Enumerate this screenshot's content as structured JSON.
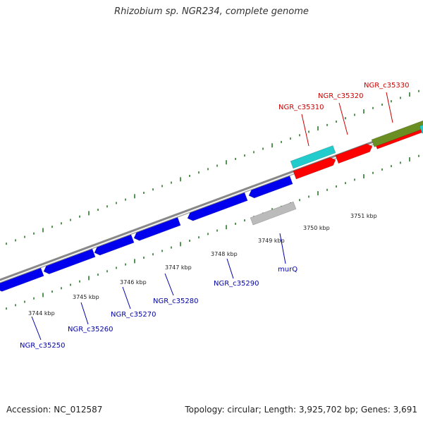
{
  "title": "Rhizobium sp. NGR234, complete genome",
  "footer": {
    "accession": "Accession: NC_012587",
    "summary": "Topology: circular; Length: 3,925,702 bp; Genes: 3,691"
  },
  "colors": {
    "forward_gene": "#ff0000",
    "reverse_gene": "#0000ee",
    "cyan_feature": "#22cccc",
    "olive_feature": "#6b8e23",
    "grey_feature": "#bbbbbb",
    "backbone": "#888888",
    "tick": "#2a7a2a",
    "forward_label": "#cc0000",
    "reverse_label": "#0000aa"
  },
  "scale": {
    "ticks": [
      {
        "kbp": 3744,
        "label": "3744 kbp"
      },
      {
        "kbp": 3745,
        "label": "3745 kbp"
      },
      {
        "kbp": 3746,
        "label": "3746 kbp"
      },
      {
        "kbp": 3747,
        "label": "3747 kbp"
      },
      {
        "kbp": 3748,
        "label": "3748 kbp"
      },
      {
        "kbp": 3749,
        "label": "3749 kbp"
      },
      {
        "kbp": 3750,
        "label": "3750 kbp"
      },
      {
        "kbp": 3751,
        "label": "3751 kbp"
      }
    ]
  },
  "genes": {
    "reverse": [
      {
        "label": "NGR_c35250",
        "labeled": true,
        "color": "#0000ee"
      },
      {
        "label": "NGR_c35260",
        "labeled": true,
        "color": "#0000ee"
      },
      {
        "label": "NGR_c35270",
        "labeled": true,
        "color": "#0000ee"
      },
      {
        "label": "NGR_c35280",
        "labeled": true,
        "color": "#0000ee"
      },
      {
        "label": "NGR_c35290",
        "labeled": true,
        "color": "#0000ee"
      },
      {
        "label": "murQ",
        "labeled": true,
        "color": "#0000ee"
      }
    ],
    "forward": [
      {
        "label": "NGR_c35310",
        "labeled": true,
        "color": "#ff0000"
      },
      {
        "label": "NGR_c35320",
        "labeled": true,
        "color": "#ff0000"
      },
      {
        "label": "NGR_c35330",
        "labeled": true,
        "color": "#ff0000"
      }
    ]
  }
}
